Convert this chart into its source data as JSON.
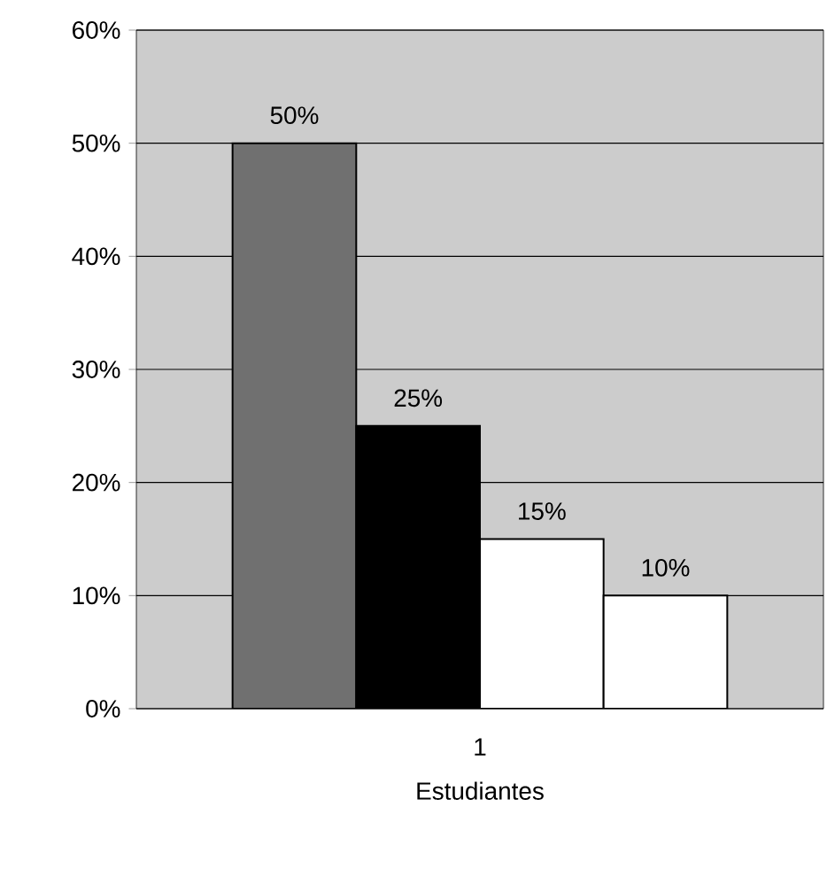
{
  "chart_data": {
    "type": "bar",
    "categories": [
      "1"
    ],
    "xlabel": "Estudiantes",
    "series": [
      {
        "color": "#707070",
        "values": [
          50
        ],
        "value_labels": [
          "50%"
        ]
      },
      {
        "color": "#000000",
        "values": [
          25
        ],
        "value_labels": [
          "25%"
        ]
      },
      {
        "color": "#ffffff",
        "values": [
          15
        ],
        "value_labels": [
          "15%"
        ]
      },
      {
        "color": "#ffffff",
        "values": [
          10
        ],
        "value_labels": [
          "10%"
        ]
      }
    ],
    "ylim": [
      0,
      60
    ],
    "yticks": [
      {
        "value": 0,
        "label": "0%"
      },
      {
        "value": 10,
        "label": "10%"
      },
      {
        "value": 20,
        "label": "20%"
      },
      {
        "value": 30,
        "label": "30%"
      },
      {
        "value": 40,
        "label": "40%"
      },
      {
        "value": 50,
        "label": "50%"
      },
      {
        "value": 60,
        "label": "60%"
      }
    ],
    "grid": "y"
  }
}
